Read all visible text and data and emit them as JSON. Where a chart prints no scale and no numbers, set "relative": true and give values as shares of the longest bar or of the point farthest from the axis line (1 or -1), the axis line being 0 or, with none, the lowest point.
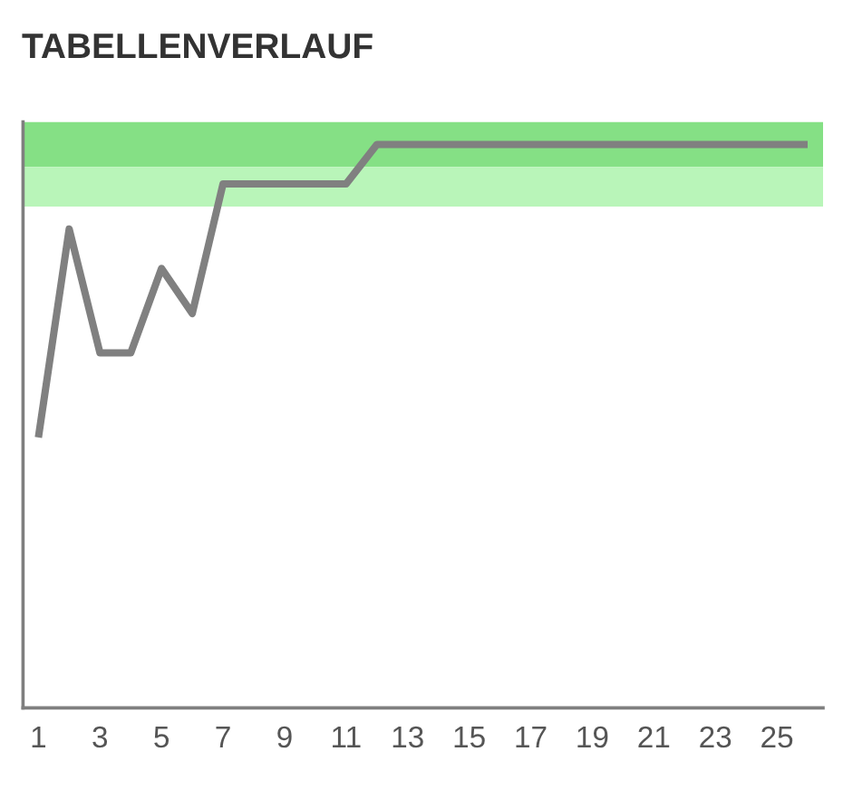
{
  "chart_data": {
    "type": "line",
    "title": "TABELLENVERLAUF",
    "relative": true,
    "x": [
      1,
      2,
      3,
      4,
      5,
      6,
      7,
      8,
      9,
      10,
      11,
      12,
      13,
      14,
      15,
      16,
      17,
      18,
      19,
      20,
      21,
      22,
      23,
      24,
      25,
      26
    ],
    "series": [
      {
        "color": "#808080",
        "values": [
          0.48,
          0.85,
          0.63,
          0.63,
          0.78,
          0.7,
          0.93,
          0.93,
          0.93,
          0.93,
          0.93,
          1,
          1,
          1,
          1,
          1,
          1,
          1,
          1,
          1,
          1,
          1,
          1,
          1,
          1,
          1
        ]
      }
    ],
    "xlim": [
      0.5,
      26.5
    ],
    "xticks": [
      1,
      3,
      5,
      7,
      9,
      11,
      13,
      15,
      17,
      19,
      21,
      23,
      25
    ],
    "bands": [
      {
        "axis": "y",
        "from": 0.96,
        "to": 1.04,
        "color": "#85e085"
      },
      {
        "axis": "y",
        "from": 0.89,
        "to": 0.96,
        "color": "#b9f5b9"
      }
    ],
    "tick_labels": "x",
    "line_style": "solid",
    "grid": false
  }
}
